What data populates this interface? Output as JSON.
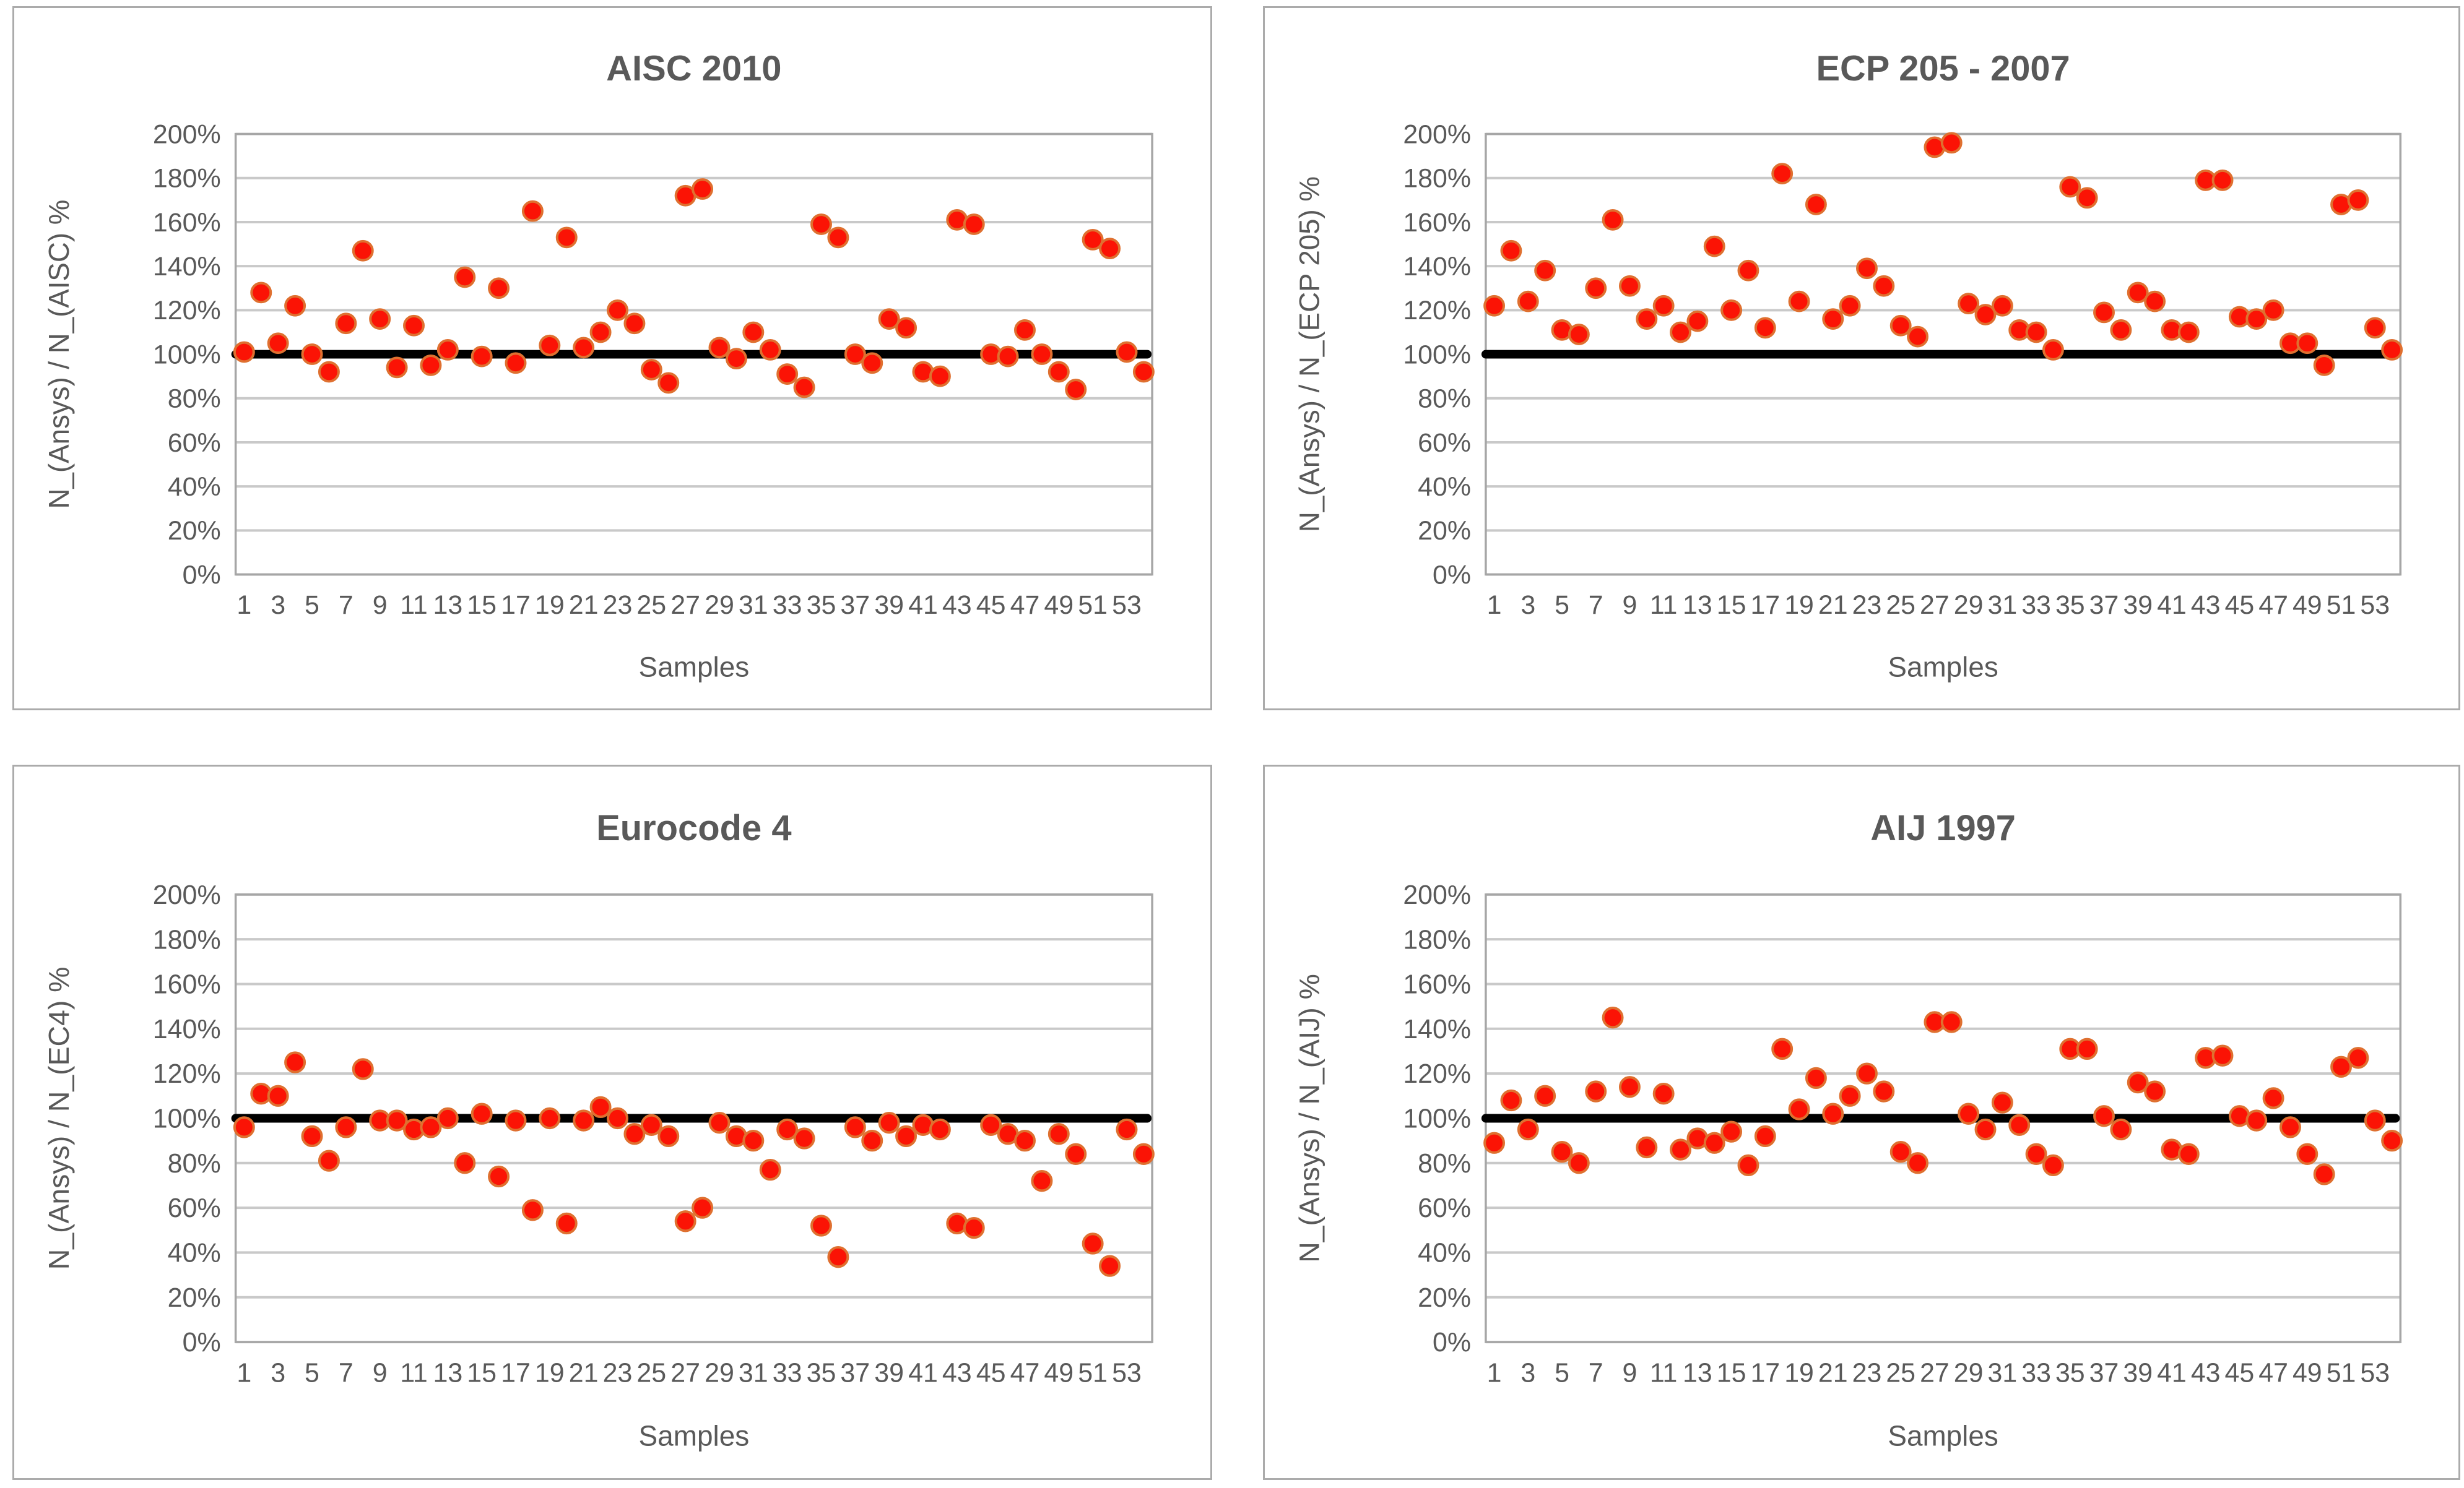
{
  "page": {
    "background": "#FFFFFF"
  },
  "colors": {
    "title_text": "#595959",
    "tick_text": "#595959",
    "axis_label_text": "#595959",
    "gridline": "#C9C9C9",
    "plot_border": "#A6A6A6",
    "panel_border": "#ABABAB",
    "marker_fill": "#FB1305",
    "marker_stroke": "#DF7030",
    "reference_line": "#000000"
  },
  "axis": {
    "y_tick_values": [
      0,
      20,
      40,
      60,
      80,
      100,
      120,
      140,
      160,
      180,
      200
    ],
    "y_tick_suffix": "%",
    "x_tick_labels": [
      1,
      3,
      5,
      7,
      9,
      11,
      13,
      15,
      17,
      19,
      21,
      23,
      25,
      27,
      29,
      31,
      33,
      35,
      37,
      39,
      41,
      43,
      45,
      47,
      49,
      51,
      53
    ]
  },
  "chart_data": [
    {
      "type": "scatter",
      "title": "AISC 2010",
      "xlabel": "Samples",
      "ylabel": "N_(Ansys) / N_(AISC)  %",
      "ylim": [
        0,
        200
      ],
      "grid": true,
      "reference_line_value": 100,
      "x": [
        1,
        2,
        3,
        4,
        5,
        6,
        7,
        8,
        9,
        10,
        11,
        12,
        13,
        14,
        15,
        16,
        17,
        18,
        19,
        20,
        21,
        22,
        23,
        24,
        25,
        26,
        27,
        28,
        29,
        30,
        31,
        32,
        33,
        34,
        35,
        36,
        37,
        38,
        39,
        40,
        41,
        42,
        43,
        44,
        45,
        46,
        47,
        48,
        49,
        50,
        51,
        52,
        53,
        54
      ],
      "values": [
        101,
        128,
        105,
        122,
        100,
        92,
        114,
        147,
        116,
        94,
        113,
        95,
        102,
        135,
        99,
        130,
        96,
        165,
        104,
        153,
        103,
        110,
        120,
        114,
        93,
        87,
        172,
        175,
        103,
        98,
        110,
        102,
        91,
        85,
        159,
        153,
        100,
        96,
        116,
        112,
        92,
        90,
        161,
        159,
        100,
        99,
        111,
        100,
        92,
        84,
        152,
        148,
        101,
        92
      ]
    },
    {
      "type": "scatter",
      "title": "ECP 205 - 2007",
      "xlabel": "Samples",
      "ylabel": "N_(Ansys) / N_(ECP 205)  %",
      "ylim": [
        0,
        200
      ],
      "grid": true,
      "reference_line_value": 100,
      "x": [
        1,
        2,
        3,
        4,
        5,
        6,
        7,
        8,
        9,
        10,
        11,
        12,
        13,
        14,
        15,
        16,
        17,
        18,
        19,
        20,
        21,
        22,
        23,
        24,
        25,
        26,
        27,
        28,
        29,
        30,
        31,
        32,
        33,
        34,
        35,
        36,
        37,
        38,
        39,
        40,
        41,
        42,
        43,
        44,
        45,
        46,
        47,
        48,
        49,
        50,
        51,
        52,
        53,
        54
      ],
      "values": [
        122,
        147,
        124,
        138,
        111,
        109,
        130,
        161,
        131,
        116,
        122,
        110,
        115,
        149,
        120,
        138,
        112,
        182,
        124,
        168,
        116,
        122,
        139,
        131,
        113,
        108,
        194,
        196,
        123,
        118,
        122,
        111,
        110,
        102,
        176,
        171,
        119,
        111,
        128,
        124,
        111,
        110,
        179,
        179,
        117,
        116,
        120,
        105,
        105,
        95,
        168,
        170,
        112,
        102
      ]
    },
    {
      "type": "scatter",
      "title": "Eurocode 4",
      "xlabel": "Samples",
      "ylabel": "N_(Ansys) / N_(EC4)  %",
      "ylim": [
        0,
        200
      ],
      "grid": true,
      "reference_line_value": 100,
      "x": [
        1,
        2,
        3,
        4,
        5,
        6,
        7,
        8,
        9,
        10,
        11,
        12,
        13,
        14,
        15,
        16,
        17,
        18,
        19,
        20,
        21,
        22,
        23,
        24,
        25,
        26,
        27,
        28,
        29,
        30,
        31,
        32,
        33,
        34,
        35,
        36,
        37,
        38,
        39,
        40,
        41,
        42,
        43,
        44,
        45,
        46,
        47,
        48,
        49,
        50,
        51,
        52,
        53,
        54
      ],
      "values": [
        96,
        111,
        110,
        125,
        92,
        81,
        96,
        122,
        99,
        99,
        95,
        96,
        100,
        80,
        102,
        74,
        99,
        59,
        100,
        53,
        99,
        105,
        100,
        93,
        97,
        92,
        54,
        60,
        98,
        92,
        90,
        77,
        95,
        91,
        52,
        38,
        96,
        90,
        98,
        92,
        97,
        95,
        53,
        51,
        97,
        93,
        90,
        72,
        93,
        84,
        44,
        34,
        95,
        84
      ]
    },
    {
      "type": "scatter",
      "title": "AIJ 1997",
      "xlabel": "Samples",
      "ylabel": "N_(Ansys) / N_(AIJ)  %",
      "ylim": [
        0,
        200
      ],
      "grid": true,
      "reference_line_value": 100,
      "x": [
        1,
        2,
        3,
        4,
        5,
        6,
        7,
        8,
        9,
        10,
        11,
        12,
        13,
        14,
        15,
        16,
        17,
        18,
        19,
        20,
        21,
        22,
        23,
        24,
        25,
        26,
        27,
        28,
        29,
        30,
        31,
        32,
        33,
        34,
        35,
        36,
        37,
        38,
        39,
        40,
        41,
        42,
        43,
        44,
        45,
        46,
        47,
        48,
        49,
        50,
        51,
        52,
        53,
        54
      ],
      "values": [
        89,
        108,
        95,
        110,
        85,
        80,
        112,
        145,
        114,
        87,
        111,
        86,
        91,
        89,
        94,
        79,
        92,
        131,
        104,
        118,
        102,
        110,
        120,
        112,
        85,
        80,
        143,
        143,
        102,
        95,
        107,
        97,
        84,
        79,
        131,
        131,
        101,
        95,
        116,
        112,
        86,
        84,
        127,
        128,
        101,
        99,
        109,
        96,
        84,
        75,
        123,
        127,
        99,
        90
      ]
    }
  ]
}
